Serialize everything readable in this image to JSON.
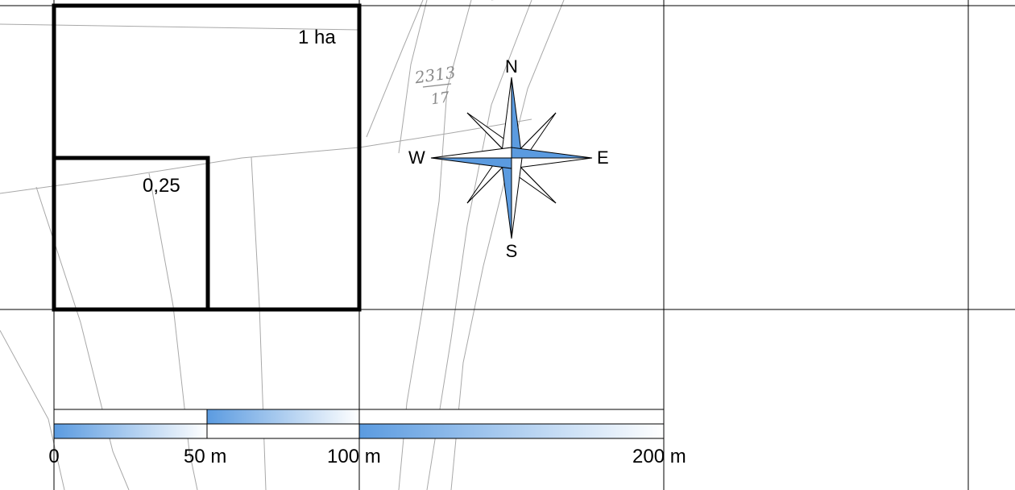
{
  "area_squares": {
    "large_label": "1 ha",
    "small_label": "0,25"
  },
  "parcel_number": {
    "top": "2313",
    "bottom": "17"
  },
  "compass": {
    "north": "N",
    "south": "S",
    "east": "E",
    "west": "W"
  },
  "scale_bar": {
    "labels": [
      "0",
      "50 m",
      "100 m",
      "200 m"
    ]
  },
  "colors": {
    "accent_blue": "#5b9be0",
    "parcel_lines": "#a8a8a8",
    "grid_lines": "#000000"
  }
}
